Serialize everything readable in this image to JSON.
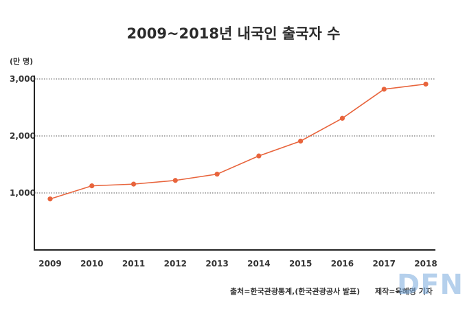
{
  "title": "2009~2018년 내국인 출국자 수",
  "unit_label": "(만 명)",
  "footer": {
    "source": "출처=한국관광통계,(한국관광공사 발표)",
    "credit": "제작=육혜영 기자"
  },
  "watermark": "DFN",
  "colors": {
    "line": "#e8643c",
    "axis": "#222222",
    "grid": "#555555",
    "watermark": "#78aadc"
  },
  "chart_data": {
    "type": "line",
    "title": "2009~2018년 내국인 출국자 수",
    "xlabel": "",
    "ylabel": "(만 명)",
    "categories": [
      "2009",
      "2010",
      "2011",
      "2012",
      "2013",
      "2014",
      "2015",
      "2016",
      "2017",
      "2018"
    ],
    "series": [
      {
        "values": [
          895,
          1125,
          1155,
          1220,
          1330,
          1650,
          1910,
          2310,
          2820,
          2910
        ]
      }
    ],
    "ylim": [
      0,
      3000
    ],
    "yticks": [
      1000,
      2000,
      3000
    ],
    "ytick_labels": [
      "1,000",
      "2,000",
      "3,000"
    ],
    "grid": "horizontal dotted",
    "legend": "none"
  }
}
